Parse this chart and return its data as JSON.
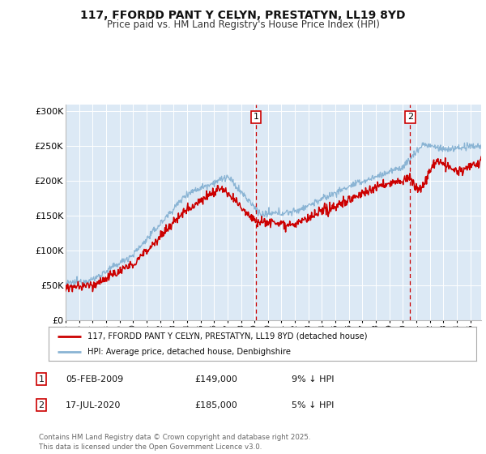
{
  "title": "117, FFORDD PANT Y CELYN, PRESTATYN, LL19 8YD",
  "subtitle": "Price paid vs. HM Land Registry's House Price Index (HPI)",
  "ylim": [
    0,
    310000
  ],
  "yticks": [
    0,
    50000,
    100000,
    150000,
    200000,
    250000,
    300000
  ],
  "ytick_labels": [
    "£0",
    "£50K",
    "£100K",
    "£150K",
    "£200K",
    "£250K",
    "£300K"
  ],
  "xlim_start": 1995.0,
  "xlim_end": 2025.8,
  "background_color": "#dce9f5",
  "red_line_color": "#cc0000",
  "blue_line_color": "#8ab4d4",
  "marker1_year": 2009.1,
  "marker2_year": 2020.54,
  "legend_entry1": "117, FFORDD PANT Y CELYN, PRESTATYN, LL19 8YD (detached house)",
  "legend_entry2": "HPI: Average price, detached house, Denbighshire",
  "table_row1": [
    "1",
    "05-FEB-2009",
    "£149,000",
    "9% ↓ HPI"
  ],
  "table_row2": [
    "2",
    "17-JUL-2020",
    "£185,000",
    "5% ↓ HPI"
  ],
  "footnote": "Contains HM Land Registry data © Crown copyright and database right 2025.\nThis data is licensed under the Open Government Licence v3.0.",
  "grid_color": "#ffffff",
  "vline_color": "#cc0000"
}
